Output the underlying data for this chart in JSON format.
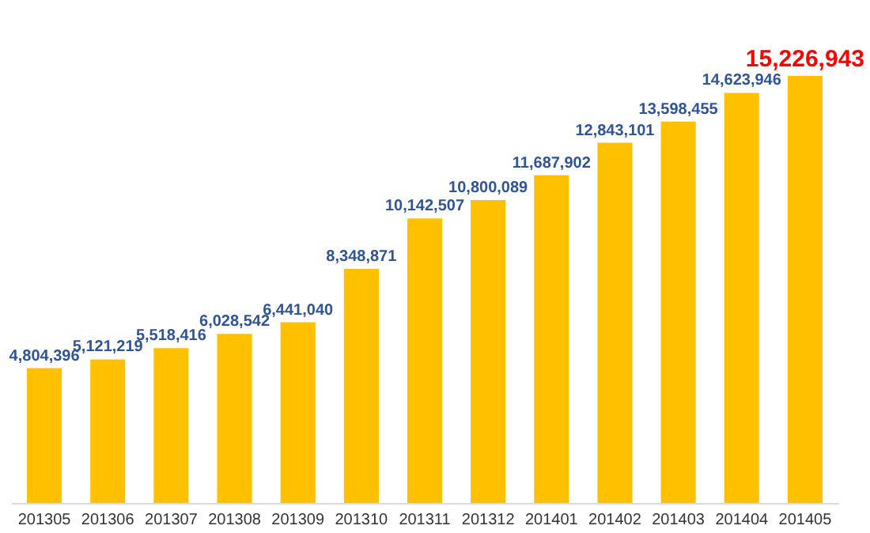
{
  "chart_data": {
    "type": "bar",
    "categories": [
      "201305",
      "201306",
      "201307",
      "201308",
      "201309",
      "201310",
      "201311",
      "201312",
      "201401",
      "201402",
      "201403",
      "201404",
      "201405"
    ],
    "values": [
      4804396,
      5121219,
      5518416,
      6028542,
      6441040,
      8348871,
      10142507,
      10800089,
      11687902,
      12843101,
      13598455,
      14623946,
      15226943
    ],
    "value_labels": [
      "4,804,396",
      "5,121,219",
      "5,518,416",
      "6,028,542",
      "6,441,040",
      "8,348,871",
      "10,142,507",
      "10,800,089",
      "11,687,902",
      "12,843,101",
      "13,598,455",
      "14,623,946",
      "15,226,943"
    ],
    "color": "#ffc000"
  }
}
